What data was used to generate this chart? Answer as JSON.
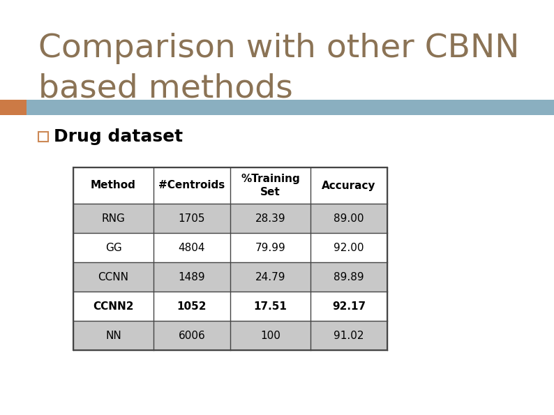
{
  "title_line1": "Comparison with other CBNN",
  "title_line2": "based methods",
  "title_color": "#8B7355",
  "subtitle": "Drug dataset",
  "subtitle_color": "#000000",
  "header_bar_color": "#8aafc0",
  "orange_square_color": "#cc7a45",
  "bullet_square_color": "#cc8855",
  "bg_color": "#ffffff",
  "table_headers": [
    "Method",
    "#Centroids",
    "%Training\nSet",
    "Accuracy"
  ],
  "table_rows": [
    [
      "RNG",
      "1705",
      "28.39",
      "89.00"
    ],
    [
      "GG",
      "4804",
      "79.99",
      "92.00"
    ],
    [
      "CCNN",
      "1489",
      "24.79",
      "89.89"
    ],
    [
      "CCNN2",
      "1052",
      "17.51",
      "92.17"
    ],
    [
      "NN",
      "6006",
      "100",
      "91.02"
    ]
  ],
  "bold_rows": [
    3
  ],
  "row_colors": [
    "#c8c8c8",
    "#ffffff",
    "#c8c8c8",
    "#ffffff",
    "#c8c8c8"
  ],
  "header_row_color": "#ffffff"
}
